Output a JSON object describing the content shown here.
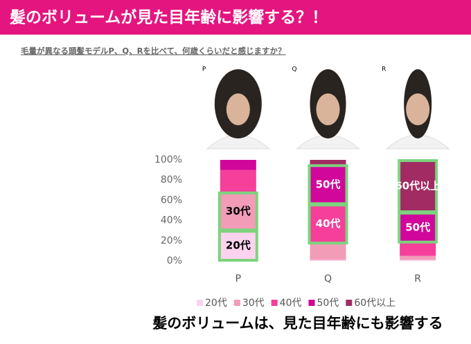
{
  "header": {
    "title": "髪のボリュームが見た目年齢に影響する？！"
  },
  "subtitle": "毛量が異なる頭髪モデルP、Q、Rを比べて、何歳くらいだと感じますか？",
  "conclusion": "髪のボリュームは、見た目年齢にも影響する",
  "chart_data": {
    "type": "stacked_bar",
    "categories": [
      "P",
      "Q",
      "R"
    ],
    "series": [
      {
        "name": "20代",
        "color": "#fbd3ee",
        "values": [
          30,
          1,
          1
        ]
      },
      {
        "name": "30代",
        "color": "#f29cb8",
        "values": [
          38,
          16,
          4
        ]
      },
      {
        "name": "40代",
        "color": "#f53f9b",
        "values": [
          22,
          39,
          13
        ]
      },
      {
        "name": "50代",
        "color": "#d1079b",
        "values": [
          10,
          39,
          30
        ]
      },
      {
        "name": "60代以上",
        "color": "#a12b62",
        "values": [
          0,
          5,
          52
        ]
      }
    ],
    "ylim": [
      0,
      100
    ],
    "yticks": [
      {
        "value": 0,
        "label": "0%"
      },
      {
        "value": 20,
        "label": "20%"
      },
      {
        "value": 40,
        "label": "40%"
      },
      {
        "value": 60,
        "label": "60%"
      },
      {
        "value": 80,
        "label": "80%"
      },
      {
        "value": 100,
        "label": "100%"
      }
    ],
    "legend": "bottom"
  }
}
